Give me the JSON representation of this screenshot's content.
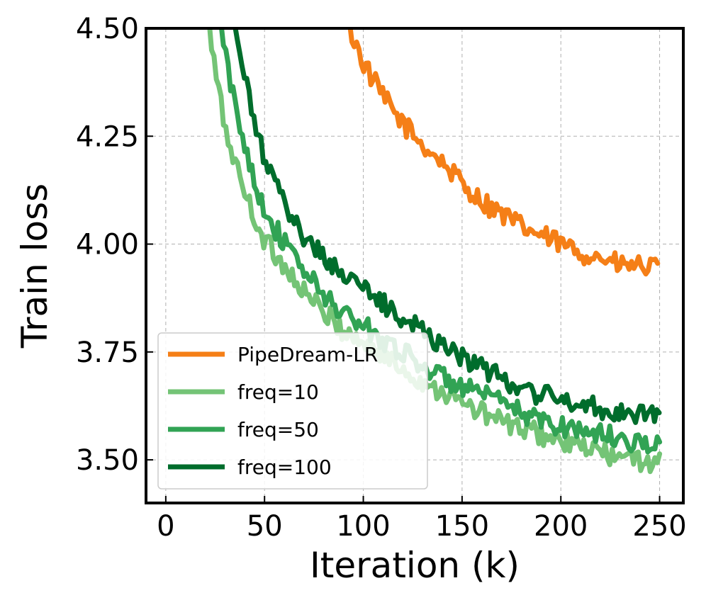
{
  "chart_data": {
    "type": "line",
    "title": "",
    "xlabel": "Iteration (k)",
    "ylabel": "Train loss",
    "xlim": [
      -10,
      262
    ],
    "ylim": [
      3.4,
      4.5
    ],
    "xticks": [
      0,
      50,
      100,
      150,
      200,
      250
    ],
    "yticks": [
      3.5,
      3.75,
      4.0,
      4.25,
      4.5
    ],
    "xtick_labels": [
      "0",
      "50",
      "100",
      "150",
      "200",
      "250"
    ],
    "ytick_labels": [
      "3.50",
      "3.75",
      "4.00",
      "4.25",
      "4.50"
    ],
    "grid": true,
    "legend_position": "lower-left",
    "series": [
      {
        "name": "PipeDream-LR",
        "color": "#f57f17",
        "x": [
          93,
          100,
          110,
          120,
          130,
          140,
          150,
          160,
          170,
          180,
          190,
          200,
          210,
          220,
          230,
          240,
          250
        ],
        "y": [
          4.5,
          4.42,
          4.34,
          4.28,
          4.23,
          4.19,
          4.14,
          4.1,
          4.07,
          4.04,
          4.02,
          4.0,
          3.98,
          3.97,
          3.95,
          3.95,
          3.94
        ]
      },
      {
        "name": "freq=10",
        "color": "#74c476",
        "x": [
          22,
          25,
          30,
          35,
          40,
          45,
          50,
          55,
          60,
          70,
          80,
          90,
          100,
          110,
          120,
          130,
          140,
          150,
          160,
          170,
          180,
          190,
          200,
          210,
          220,
          230,
          240,
          250
        ],
        "y": [
          4.5,
          4.4,
          4.27,
          4.19,
          4.12,
          4.06,
          4.01,
          3.98,
          3.95,
          3.89,
          3.84,
          3.8,
          3.77,
          3.74,
          3.71,
          3.68,
          3.66,
          3.63,
          3.61,
          3.59,
          3.57,
          3.56,
          3.54,
          3.53,
          3.52,
          3.5,
          3.5,
          3.49
        ]
      },
      {
        "name": "freq=50",
        "color": "#31a354",
        "x": [
          28,
          30,
          35,
          40,
          45,
          50,
          55,
          60,
          70,
          80,
          90,
          100,
          110,
          120,
          130,
          140,
          150,
          160,
          170,
          180,
          190,
          200,
          210,
          220,
          230,
          240,
          250
        ],
        "y": [
          4.5,
          4.44,
          4.32,
          4.23,
          4.15,
          4.08,
          4.04,
          4.0,
          3.94,
          3.88,
          3.84,
          3.81,
          3.78,
          3.75,
          3.72,
          3.69,
          3.67,
          3.65,
          3.63,
          3.61,
          3.59,
          3.58,
          3.57,
          3.56,
          3.55,
          3.54,
          3.53
        ]
      },
      {
        "name": "freq=100",
        "color": "#006d2c",
        "x": [
          35,
          40,
          45,
          50,
          55,
          60,
          70,
          80,
          90,
          100,
          110,
          120,
          130,
          140,
          150,
          160,
          170,
          180,
          190,
          200,
          210,
          220,
          230,
          240,
          250
        ],
        "y": [
          4.5,
          4.38,
          4.28,
          4.2,
          4.14,
          4.09,
          4.02,
          3.97,
          3.93,
          3.9,
          3.86,
          3.83,
          3.8,
          3.77,
          3.74,
          3.71,
          3.69,
          3.67,
          3.65,
          3.64,
          3.63,
          3.62,
          3.61,
          3.61,
          3.61
        ]
      }
    ]
  }
}
